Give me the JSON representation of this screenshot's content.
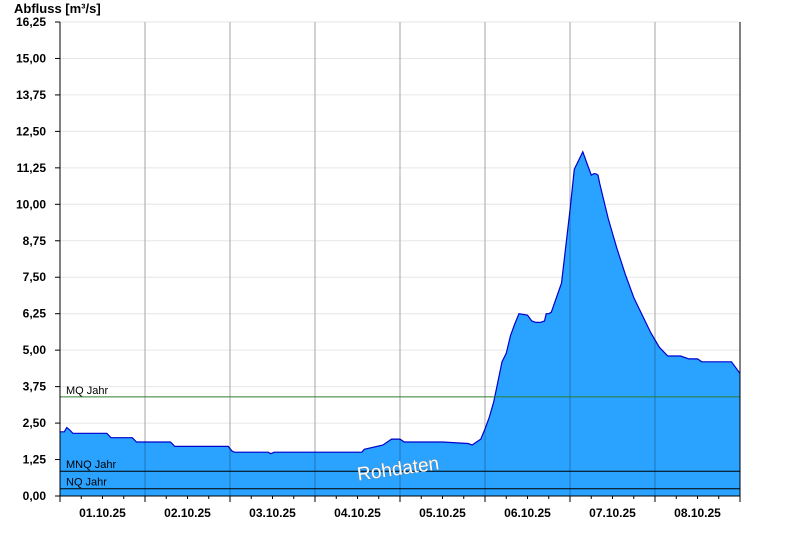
{
  "chart_data": {
    "type": "area",
    "ylabel": "Abfluss [m³/s]",
    "ylim": [
      0,
      16.25
    ],
    "yticks": [
      "0,00",
      "1,25",
      "2,50",
      "3,75",
      "5,00",
      "6,25",
      "7,50",
      "8,75",
      "10,00",
      "11,25",
      "12,50",
      "13,75",
      "15,00",
      "16,25"
    ],
    "xlim_days": [
      0,
      8
    ],
    "xticks": [
      "01.10.25",
      "02.10.25",
      "03.10.25",
      "04.10.25",
      "05.10.25",
      "06.10.25",
      "07.10.25",
      "08.10.25"
    ],
    "grid": true,
    "fill_color": "#29a3ff",
    "line_color": "#0000cc",
    "watermark": "Rohdaten",
    "reference_lines": [
      {
        "label": "MQ Jahr",
        "value": 3.4,
        "color": "#2e7d32"
      },
      {
        "label": "MNQ Jahr",
        "value": 0.85,
        "color": "#000000"
      },
      {
        "label": "NQ Jahr",
        "value": 0.25,
        "color": "#000000"
      }
    ],
    "series": [
      {
        "x": [
          0.0,
          0.05,
          0.08,
          0.12,
          0.15,
          0.55,
          0.6,
          0.85,
          0.9,
          1.3,
          1.35,
          1.98,
          2.02,
          2.05,
          2.45,
          2.48,
          2.52,
          3.55,
          3.58,
          3.8,
          3.9,
          4.0,
          4.05,
          4.1,
          4.5,
          4.8,
          4.85,
          4.9,
          4.95,
          5.0,
          5.05,
          5.1,
          5.15,
          5.2,
          5.25,
          5.3,
          5.35,
          5.4,
          5.5,
          5.55,
          5.6,
          5.65,
          5.7,
          5.72,
          5.75,
          5.78,
          5.9,
          6.0,
          6.05,
          6.1,
          6.15,
          6.2,
          6.25,
          6.28,
          6.3,
          6.33,
          6.35,
          6.45,
          6.55,
          6.65,
          6.75,
          6.85,
          6.95,
          7.05,
          7.15,
          7.3,
          7.4,
          7.5,
          7.55,
          7.9,
          7.95,
          8.0
        ],
        "y": [
          2.2,
          2.2,
          2.35,
          2.25,
          2.15,
          2.15,
          2.0,
          2.0,
          1.85,
          1.85,
          1.7,
          1.7,
          1.55,
          1.5,
          1.5,
          1.45,
          1.5,
          1.5,
          1.6,
          1.75,
          1.95,
          1.95,
          1.85,
          1.85,
          1.85,
          1.8,
          1.75,
          1.85,
          1.95,
          2.3,
          2.7,
          3.2,
          3.9,
          4.6,
          4.9,
          5.5,
          5.9,
          6.25,
          6.2,
          6.0,
          5.95,
          5.95,
          6.0,
          6.25,
          6.25,
          6.3,
          7.3,
          9.8,
          11.2,
          11.5,
          11.8,
          11.4,
          11.0,
          11.05,
          11.05,
          11.0,
          10.7,
          9.5,
          8.5,
          7.6,
          6.8,
          6.2,
          5.6,
          5.1,
          4.8,
          4.8,
          4.7,
          4.7,
          4.6,
          4.6,
          4.4,
          4.2
        ]
      }
    ]
  }
}
